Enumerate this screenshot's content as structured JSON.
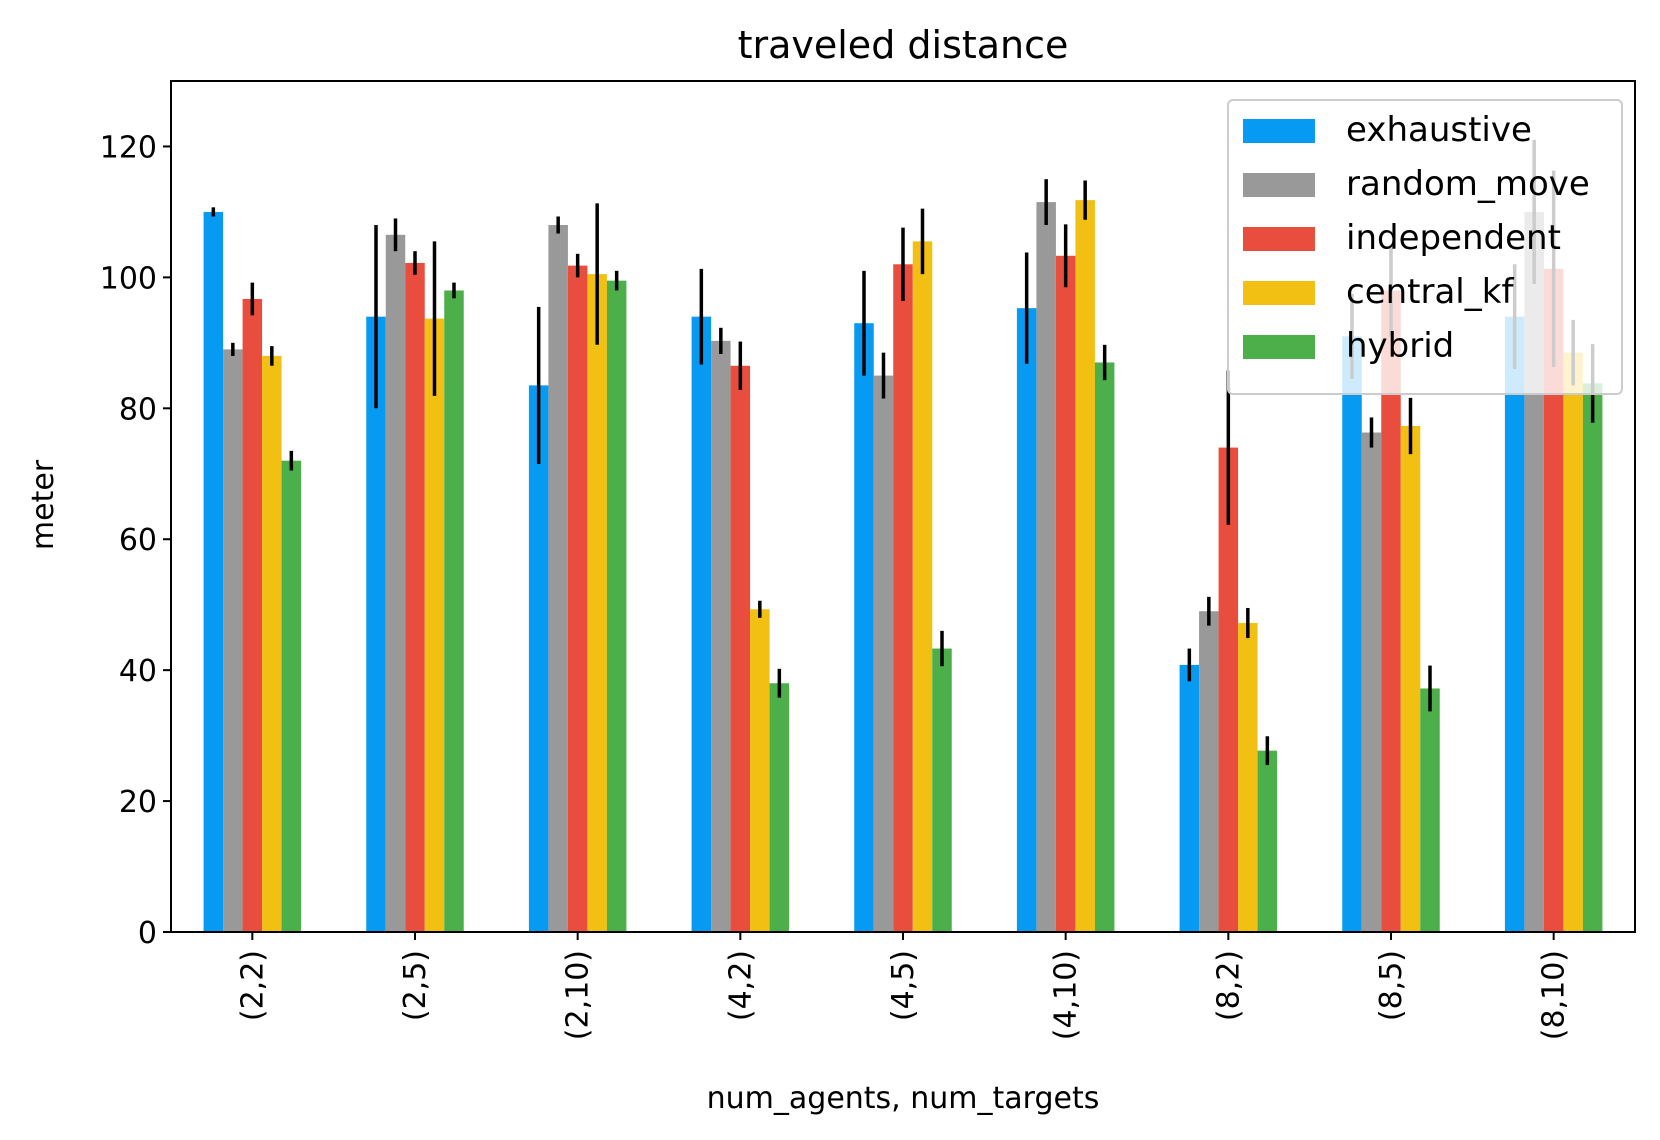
{
  "chart_data": {
    "type": "bar",
    "title": "traveled distance",
    "xlabel": "num_agents, num_targets",
    "ylabel": "meter",
    "ylim": [
      0,
      130
    ],
    "yticks": [
      0,
      20,
      40,
      60,
      80,
      100,
      120
    ],
    "grid": false,
    "legend_position": "top-right",
    "categories": [
      "(2,2)",
      "(2,5)",
      "(2,10)",
      "(4,2)",
      "(4,5)",
      "(4,10)",
      "(8,2)",
      "(8,5)",
      "(8,10)"
    ],
    "series": [
      {
        "name": "exhaustive",
        "color": "#069af3",
        "values": [
          110,
          94,
          83.5,
          94,
          93,
          95.3,
          40.8,
          91,
          94
        ],
        "errors": [
          0.7,
          14,
          12,
          7.3,
          8,
          8.5,
          2.5,
          6.5,
          8
        ]
      },
      {
        "name": "random_move",
        "color": "#999999",
        "values": [
          89,
          106.5,
          108,
          90.3,
          85,
          111.5,
          49,
          76.3,
          110
        ],
        "errors": [
          1,
          2.5,
          1.3,
          2,
          3.5,
          3.5,
          2.2,
          2.3,
          11
        ]
      },
      {
        "name": "independent",
        "color": "#e84d3d",
        "values": [
          96.7,
          102.2,
          101.8,
          86.5,
          102,
          103.3,
          74,
          98,
          101.3
        ],
        "errors": [
          2.5,
          1.8,
          1.8,
          3.7,
          5.6,
          4.8,
          11.8,
          7,
          15
        ]
      },
      {
        "name": "central_kf",
        "color": "#f2c012",
        "values": [
          88,
          93.7,
          100.5,
          49.3,
          105.5,
          111.8,
          47.2,
          77.3,
          88.5
        ],
        "errors": [
          1.5,
          11.8,
          10.8,
          1.3,
          5,
          3,
          2.3,
          4.3,
          5
        ]
      },
      {
        "name": "hybrid",
        "color": "#4caf49",
        "values": [
          72,
          98,
          99.5,
          38,
          43.3,
          87,
          27.7,
          37.2,
          83.8
        ],
        "errors": [
          1.5,
          1.2,
          1.5,
          2.2,
          2.7,
          2.7,
          2.2,
          3.5,
          6
        ]
      }
    ]
  }
}
